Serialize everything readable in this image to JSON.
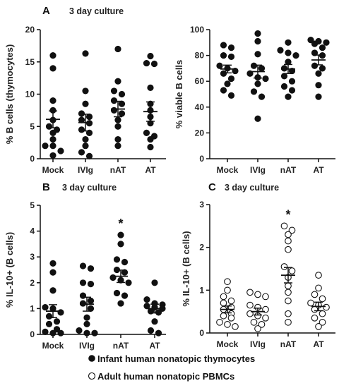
{
  "legend": [
    {
      "marker": "filled",
      "label": "Infant human nonatopic thymocytes"
    },
    {
      "marker": "open",
      "label": "Adult human nonatopic PBMCs"
    }
  ],
  "colors": {
    "filled": "#111111",
    "open": "#ffffff",
    "stroke": "#111111"
  },
  "chart_data": [
    {
      "panel": "A",
      "title": "3 day culture",
      "type": "scatter",
      "categories": [
        "Mock",
        "IVIg",
        "nAT",
        "AT"
      ],
      "ylabel": "% B cells (thymocytes)",
      "ylim": [
        0,
        20
      ],
      "yticks": [
        0,
        5,
        10,
        15,
        20
      ],
      "marker": "filled",
      "significance": [],
      "series": [
        {
          "category": "Mock",
          "values": [
            16.0,
            14.0,
            9.0,
            7.5,
            6.0,
            5.0,
            4.5,
            4.0,
            3.0,
            2.0,
            2.0,
            1.2,
            0.5
          ],
          "mean": 6.1,
          "sem": 1.3
        },
        {
          "category": "IVIg",
          "values": [
            16.3,
            10.5,
            8.5,
            7.0,
            6.5,
            6.0,
            5.5,
            4.5,
            4.0,
            3.0,
            2.0,
            1.0,
            0.4
          ],
          "mean": 5.6,
          "sem": 1.3
        },
        {
          "category": "nAT",
          "values": [
            17.0,
            12.0,
            10.5,
            10.0,
            9.0,
            8.5,
            7.5,
            7.0,
            6.0,
            5.0,
            3.0,
            2.0
          ],
          "mean": 7.7,
          "sem": 1.2
        },
        {
          "category": "AT",
          "values": [
            14.8,
            14.7,
            15.9,
            11.0,
            8.5,
            7.5,
            6.5,
            5.5,
            4.0,
            3.5,
            3.0,
            1.8
          ],
          "mean": 7.3,
          "sem": 1.5
        }
      ]
    },
    {
      "panel": "A-right",
      "title": "",
      "type": "scatter",
      "categories": [
        "Mock",
        "IVIg",
        "nAT",
        "AT"
      ],
      "ylabel": "% viable B cells",
      "ylim": [
        0,
        100
      ],
      "yticks": [
        0,
        20,
        40,
        60,
        80,
        100
      ],
      "marker": "filled",
      "significance": [],
      "series": [
        {
          "category": "Mock",
          "values": [
            88,
            86,
            80,
            79,
            72,
            70,
            68,
            66,
            62,
            58,
            53,
            49
          ],
          "mean": 69.5,
          "sem": 3.0
        },
        {
          "category": "IVIg",
          "values": [
            97,
            91,
            81,
            72,
            70,
            66,
            63,
            62,
            58,
            52,
            48,
            31
          ],
          "mean": 67.5,
          "sem": 5.0
        },
        {
          "category": "nAT",
          "values": [
            90,
            84,
            82,
            80,
            75,
            70,
            68,
            64,
            60,
            56,
            53,
            48
          ],
          "mean": 69.5,
          "sem": 3.5
        },
        {
          "category": "AT",
          "values": [
            92,
            91,
            90,
            89,
            86,
            82,
            80,
            72,
            70,
            66,
            57,
            48
          ],
          "mean": 76.5,
          "sem": 3.8
        }
      ]
    },
    {
      "panel": "B",
      "title": "3 day culture",
      "type": "scatter",
      "categories": [
        "Mock",
        "IVIg",
        "nAT",
        "AT"
      ],
      "ylabel": "% IL-10+ (B cells)",
      "ylim": [
        0,
        5
      ],
      "yticks": [
        0,
        1,
        2,
        3,
        4,
        5
      ],
      "marker": "filled",
      "significance": [
        {
          "category": "nAT",
          "mark": "*"
        }
      ],
      "series": [
        {
          "category": "Mock",
          "values": [
            2.75,
            2.4,
            1.7,
            1.05,
            1.0,
            0.85,
            0.7,
            0.5,
            0.4,
            0.2,
            0.1,
            0.05,
            0.05
          ],
          "mean": 0.9,
          "sem": 0.25
        },
        {
          "category": "IVIg",
          "values": [
            2.65,
            2.55,
            2.0,
            1.95,
            1.5,
            1.3,
            1.2,
            1.0,
            0.65,
            0.4,
            0.15,
            0.05,
            0.05
          ],
          "mean": 1.17,
          "sem": 0.27
        },
        {
          "category": "nAT",
          "values": [
            3.85,
            3.5,
            2.9,
            2.8,
            2.5,
            2.4,
            2.2,
            2.1,
            2.0,
            1.6,
            1.5,
            1.2
          ],
          "mean": 2.25,
          "sem": 0.24
        },
        {
          "category": "AT",
          "values": [
            2.0,
            1.35,
            1.2,
            1.15,
            1.1,
            1.05,
            1.0,
            0.9,
            0.85,
            0.5,
            0.15,
            0.05
          ],
          "mean": 1.0,
          "sem": 0.17
        }
      ]
    },
    {
      "panel": "C",
      "title": "3 day culture",
      "type": "scatter",
      "categories": [
        "Mock",
        "IVIg",
        "nAT",
        "AT"
      ],
      "ylabel": "% IL-10+ (B cells)",
      "ylim": [
        0,
        3
      ],
      "yticks": [
        0,
        1,
        2,
        3
      ],
      "marker": "open",
      "significance": [
        {
          "category": "nAT",
          "mark": "*"
        }
      ],
      "series": [
        {
          "category": "Mock",
          "values": [
            1.2,
            1.0,
            0.85,
            0.75,
            0.7,
            0.6,
            0.55,
            0.45,
            0.4,
            0.35,
            0.25,
            0.2,
            0.15
          ],
          "mean": 0.55,
          "sem": 0.08
        },
        {
          "category": "IVIg",
          "values": [
            0.95,
            0.9,
            0.85,
            0.65,
            0.6,
            0.55,
            0.45,
            0.4,
            0.35,
            0.25,
            0.2,
            0.1
          ],
          "mean": 0.5,
          "sem": 0.08
        },
        {
          "category": "nAT",
          "values": [
            2.5,
            2.4,
            2.3,
            2.15,
            1.95,
            1.55,
            1.45,
            1.3,
            1.1,
            0.95,
            0.75,
            0.45,
            0.25
          ],
          "mean": 1.35,
          "sem": 0.18
        },
        {
          "category": "AT",
          "values": [
            1.35,
            1.05,
            0.9,
            0.8,
            0.7,
            0.65,
            0.6,
            0.55,
            0.45,
            0.35,
            0.25,
            0.15
          ],
          "mean": 0.62,
          "sem": 0.1
        }
      ]
    }
  ]
}
